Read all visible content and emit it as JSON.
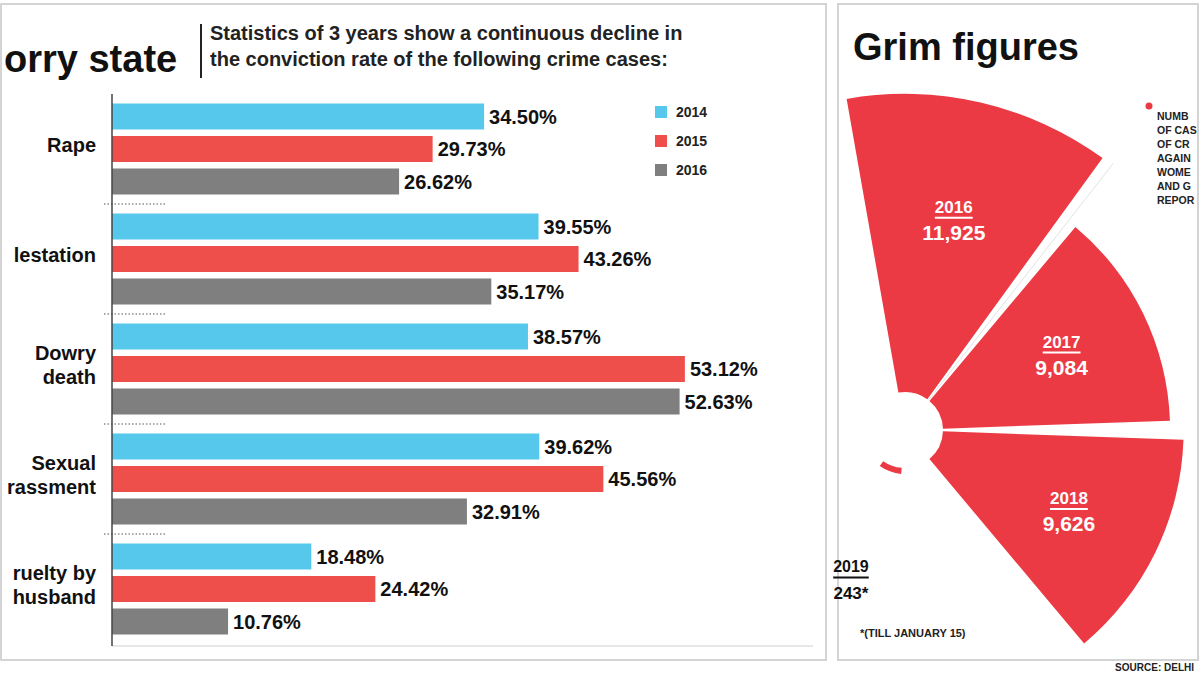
{
  "chart_data": [
    {
      "type": "bar",
      "orientation": "horizontal",
      "title": "orry state",
      "subtitle": "Statistics of 3 years show a continuous decline in\nthe conviction rate of the following crime cases:",
      "categories": [
        "Rape",
        "lestation",
        "Dowry\ndeath",
        "Sexual\nrassment",
        "ruelty by\nhusband"
      ],
      "series": [
        {
          "name": "2014",
          "color": "#56c8ec",
          "values": [
            34.5,
            39.55,
            38.57,
            39.62,
            18.48
          ],
          "value_labels": [
            "34.50%",
            "39.55%",
            "38.57%",
            "39.62%",
            "18.48%"
          ]
        },
        {
          "name": "2015",
          "color": "#ef4f4b",
          "values": [
            29.73,
            43.26,
            53.12,
            45.56,
            24.42
          ],
          "value_labels": [
            "29.73%",
            "43.26%",
            "53.12%",
            "45.56%",
            "24.42%"
          ]
        },
        {
          "name": "2016",
          "color": "#7f7f7f",
          "values": [
            26.62,
            35.17,
            52.63,
            32.91,
            10.76
          ],
          "value_labels": [
            "26.62%",
            "35.17%",
            "52.63%",
            "32.91%",
            "10.76%"
          ]
        }
      ],
      "xlim": [
        0,
        65
      ],
      "xticks": [],
      "grid": false,
      "legend": "top right",
      "data_labels": true,
      "tick_labels": "y"
    },
    {
      "type": "polar",
      "title": "Grim figures",
      "categories": [
        "2016",
        "2017",
        "2018",
        "2019"
      ],
      "series": [
        {
          "name": "NUMB\nOF CAS\nOF CR\nAGAIN\nWOME\nAND G\nREPOR",
          "color": "#ec3a44",
          "values": [
            11925,
            9084,
            9626,
            243
          ],
          "value_labels": [
            "11,925",
            "9,084",
            "9,626",
            "243*"
          ]
        }
      ],
      "ylim": [
        0,
        12000
      ],
      "yticks": [],
      "grid": false,
      "legend": "top right",
      "data_labels": true,
      "tick_labels": false,
      "annotations": [
        "*(TILL JANUARY 15)",
        "SOURCE: DELHI"
      ]
    }
  ]
}
